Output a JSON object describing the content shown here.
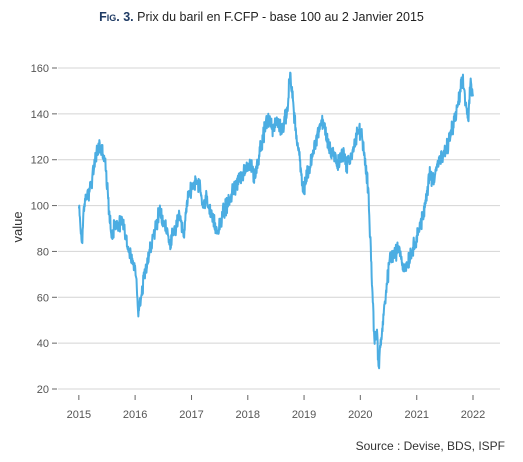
{
  "figure": {
    "label": "Fig. 3.",
    "title": "Prix du baril en F.CFP - base 100 au 2 Janvier 2015",
    "source": "Source : Devise, BDS, ISPF"
  },
  "colors": {
    "line": "#4BADE2",
    "grid": "#d4d4d4",
    "label_accent": "#1f3b64"
  },
  "chart_data": {
    "type": "line",
    "title": "Prix du baril en F.CFP - base 100 au 2 Janvier 2015",
    "xlabel": "",
    "ylabel": "value",
    "x_ticks": [
      "2015",
      "2016",
      "2017",
      "2018",
      "2019",
      "2020",
      "2021",
      "2022"
    ],
    "y_ticks": [
      20,
      40,
      60,
      80,
      100,
      120,
      140,
      160
    ],
    "xlim": [
      "2015-01-02",
      "2022-01-01"
    ],
    "ylim": [
      18,
      162
    ],
    "grid": "horizontal",
    "legend": "none",
    "series": [
      {
        "x": [
          "2015-01-02",
          "2015-01-20",
          "2015-02-10",
          "2015-03-05",
          "2015-03-25",
          "2015-04-20",
          "2015-05-10",
          "2015-06-01",
          "2015-06-20",
          "2015-07-10",
          "2015-08-01",
          "2015-08-24",
          "2015-09-15",
          "2015-10-10",
          "2015-11-01",
          "2015-11-25",
          "2015-12-20",
          "2016-01-10",
          "2016-01-20",
          "2016-02-11",
          "2016-03-01",
          "2016-03-20",
          "2016-04-15",
          "2016-05-10",
          "2016-06-08",
          "2016-07-01",
          "2016-07-25",
          "2016-08-10",
          "2016-09-05",
          "2016-10-10",
          "2016-11-14",
          "2016-12-01",
          "2016-12-20",
          "2017-01-15",
          "2017-02-20",
          "2017-03-20",
          "2017-04-12",
          "2017-05-05",
          "2017-06-21",
          "2017-07-20",
          "2017-08-25",
          "2017-09-25",
          "2017-10-20",
          "2017-11-10",
          "2017-12-15",
          "2018-01-20",
          "2018-02-09",
          "2018-03-15",
          "2018-04-20",
          "2018-05-20",
          "2018-06-15",
          "2018-07-10",
          "2018-08-15",
          "2018-09-15",
          "2018-10-03",
          "2018-10-25",
          "2018-11-15",
          "2018-12-01",
          "2018-12-24",
          "2019-01-20",
          "2019-02-20",
          "2019-03-20",
          "2019-04-25",
          "2019-05-20",
          "2019-06-12",
          "2019-07-10",
          "2019-08-07",
          "2019-09-16",
          "2019-10-03",
          "2019-11-10",
          "2019-12-20",
          "2020-01-08",
          "2020-01-25",
          "2020-02-20",
          "2020-03-09",
          "2020-03-20",
          "2020-04-01",
          "2020-04-20",
          "2020-04-28",
          "2020-05-20",
          "2020-06-10",
          "2020-07-10",
          "2020-08-15",
          "2020-09-10",
          "2020-10-10",
          "2020-10-30",
          "2020-11-25",
          "2020-12-20",
          "2021-01-15",
          "2021-02-15",
          "2021-03-10",
          "2021-03-23",
          "2021-04-15",
          "2021-05-15",
          "2021-06-20",
          "2021-07-06",
          "2021-07-20",
          "2021-08-20",
          "2021-09-15",
          "2021-10-05",
          "2021-10-26",
          "2021-11-15",
          "2021-12-01",
          "2021-12-15",
          "2021-12-31"
        ],
        "y": [
          99,
          84,
          103,
          106,
          110,
          121,
          126,
          124,
          119,
          103,
          86,
          93,
          92,
          94,
          87,
          79,
          75,
          68,
          54,
          61,
          70,
          77,
          82,
          90,
          97,
          92,
          90,
          83,
          87,
          95,
          86,
          101,
          106,
          110,
          109,
          99,
          104,
          95,
          89,
          96,
          101,
          106,
          110,
          113,
          114,
          118,
          112,
          122,
          133,
          139,
          133,
          137,
          133,
          142,
          158,
          143,
          128,
          122,
          106,
          113,
          120,
          129,
          137,
          133,
          125,
          123,
          118,
          124,
          117,
          123,
          133,
          132,
          122,
          108,
          82,
          62,
          42,
          44,
          30,
          44,
          58,
          77,
          79,
          82,
          72,
          75,
          79,
          84,
          90,
          96,
          106,
          114,
          111,
          118,
          121,
          123,
          126,
          134,
          140,
          147,
          155,
          145,
          137,
          153,
          148
        ]
      }
    ]
  }
}
